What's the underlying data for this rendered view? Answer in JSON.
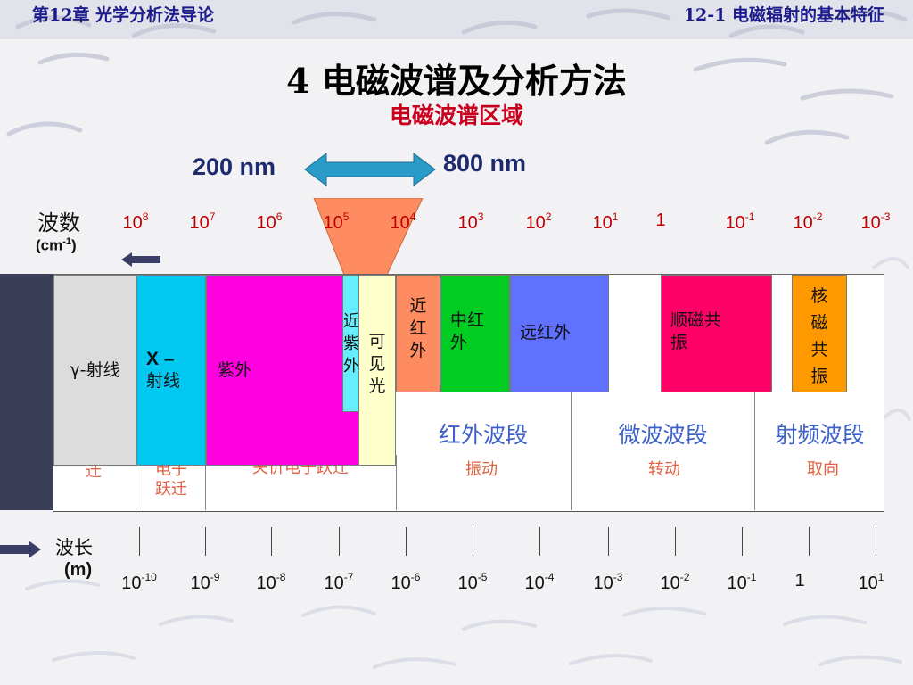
{
  "header": {
    "chapter": "第12章   光学分析法导论",
    "section": "12-1  电磁辐射的基本特征"
  },
  "title": "4   电磁波谱及分析方法",
  "subtitle": "电磁波谱区域",
  "visible_range": {
    "start_label": "200 nm",
    "end_label": "800 nm"
  },
  "wavenumber_axis": {
    "label": "波数",
    "unit_base": "(cm",
    "unit_exp": "-1",
    "unit_close": ")",
    "ticks": [
      {
        "base": "10",
        "exp": "8"
      },
      {
        "base": "10",
        "exp": "7"
      },
      {
        "base": "10",
        "exp": "6"
      },
      {
        "base": "10",
        "exp": "5"
      },
      {
        "base": "10",
        "exp": "4"
      },
      {
        "base": "10",
        "exp": "3"
      },
      {
        "base": "10",
        "exp": "2"
      },
      {
        "base": "10",
        "exp": "1"
      },
      {
        "base": "1",
        "exp": ""
      },
      {
        "base": "10",
        "exp": "-1"
      },
      {
        "base": "10",
        "exp": "-2"
      },
      {
        "base": "10",
        "exp": "-3"
      }
    ]
  },
  "wavelength_axis": {
    "label": "波长",
    "unit": "(m)",
    "ticks": [
      {
        "base": "10",
        "exp": "-10"
      },
      {
        "base": "10",
        "exp": "-9"
      },
      {
        "base": "10",
        "exp": "-8"
      },
      {
        "base": "10",
        "exp": "-7"
      },
      {
        "base": "10",
        "exp": "-6"
      },
      {
        "base": "10",
        "exp": "-5"
      },
      {
        "base": "10",
        "exp": "-4"
      },
      {
        "base": "10",
        "exp": "-3"
      },
      {
        "base": "10",
        "exp": "-2"
      },
      {
        "base": "10",
        "exp": "-1"
      },
      {
        "base": "1",
        "exp": ""
      },
      {
        "base": "10",
        "exp": "1"
      }
    ]
  },
  "bands": {
    "gamma": "γ-射线",
    "xray_a": "X –",
    "xray_b": "射线",
    "uv": "紫外",
    "near_uv": [
      "近",
      "紫",
      "外"
    ],
    "visible": [
      "可",
      "见",
      "光"
    ],
    "near_ir": [
      "近",
      "红",
      "外"
    ],
    "mid_ir": [
      "中红",
      "外"
    ],
    "far_ir": "远红外",
    "epr": [
      "顺磁共",
      "振"
    ],
    "nmr": [
      "核",
      "磁",
      "共",
      "振"
    ]
  },
  "regions": {
    "ir": "红外波段",
    "microwave": "微波波段",
    "radio": "射频波段"
  },
  "hidden_row": {
    "col1": "迁",
    "col2": [
      "电子",
      "跃迁"
    ],
    "col3": "关价电子跃迁",
    "col4": "振动",
    "col5": "转动",
    "col6": "取向"
  },
  "colors": {
    "header_text": "#1c1c8c",
    "title_red": "#c8001e",
    "wavenumber_red": "#c00000",
    "region_blue": "#3b60c8",
    "gamma": "#dcdcdc",
    "xray": "#00c8f0",
    "uv": "#ff00e0",
    "near_uv": "#66eeff",
    "visible": "#ffffcc",
    "near_ir": "#ff8c60",
    "mid_ir": "#00cc22",
    "far_ir": "#6070ff",
    "epr": "#ff0066",
    "nmr": "#ff9900",
    "funnel": "#ff8c60",
    "arrow": "#2a9bc8"
  },
  "icons": [
    "double-arrow-icon",
    "left-arrow-icon",
    "right-arrow-icon"
  ]
}
